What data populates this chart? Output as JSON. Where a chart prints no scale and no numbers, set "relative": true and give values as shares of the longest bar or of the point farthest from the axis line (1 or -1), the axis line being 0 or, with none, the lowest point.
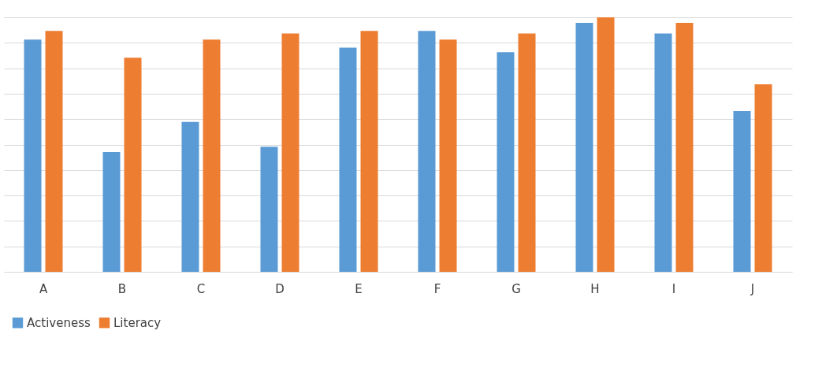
{
  "chart_data": {
    "type": "bar",
    "relative": true,
    "categories": [
      "A",
      "B",
      "C",
      "D",
      "E",
      "F",
      "G",
      "H",
      "I",
      "J"
    ],
    "series": [
      {
        "name": "Activeness",
        "color": "#5b9bd5",
        "values": [
          0.913,
          0.471,
          0.589,
          0.492,
          0.881,
          0.947,
          0.863,
          0.979,
          0.937,
          0.632
        ]
      },
      {
        "name": "Literacy",
        "color": "#ed7d31",
        "values": [
          0.947,
          0.842,
          0.913,
          0.937,
          0.947,
          0.913,
          0.937,
          1,
          0.979,
          0.737
        ]
      }
    ],
    "grid": "y",
    "legend": "bottom"
  }
}
